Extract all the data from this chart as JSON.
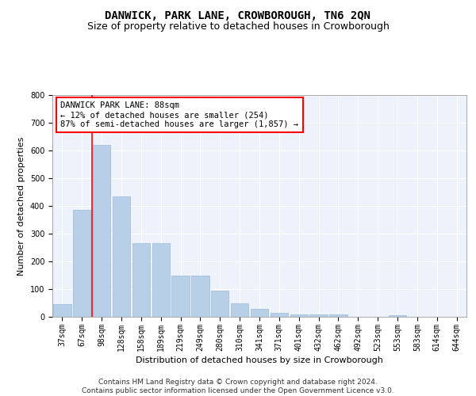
{
  "title": "DANWICK, PARK LANE, CROWBOROUGH, TN6 2QN",
  "subtitle": "Size of property relative to detached houses in Crowborough",
  "xlabel": "Distribution of detached houses by size in Crowborough",
  "ylabel": "Number of detached properties",
  "categories": [
    "37sqm",
    "67sqm",
    "98sqm",
    "128sqm",
    "158sqm",
    "189sqm",
    "219sqm",
    "249sqm",
    "280sqm",
    "310sqm",
    "341sqm",
    "371sqm",
    "401sqm",
    "432sqm",
    "462sqm",
    "492sqm",
    "523sqm",
    "553sqm",
    "583sqm",
    "614sqm",
    "644sqm"
  ],
  "values": [
    45,
    385,
    620,
    435,
    265,
    265,
    150,
    150,
    95,
    50,
    30,
    15,
    10,
    10,
    10,
    0,
    0,
    5,
    0,
    0,
    0
  ],
  "bar_color": "#b8cfe8",
  "bar_edgecolor": "#9ab8d8",
  "vline_x": 1.5,
  "vline_color": "red",
  "annotation_text": "DANWICK PARK LANE: 88sqm\n← 12% of detached houses are smaller (254)\n87% of semi-detached houses are larger (1,857) →",
  "ylim": [
    0,
    800
  ],
  "yticks": [
    0,
    100,
    200,
    300,
    400,
    500,
    600,
    700,
    800
  ],
  "background_color": "#eef2fa",
  "footer_text": "Contains HM Land Registry data © Crown copyright and database right 2024.\nContains public sector information licensed under the Open Government Licence v3.0.",
  "title_fontsize": 10,
  "subtitle_fontsize": 9,
  "xlabel_fontsize": 8,
  "ylabel_fontsize": 8,
  "tick_fontsize": 7,
  "annotation_fontsize": 7.5,
  "footer_fontsize": 6.5
}
